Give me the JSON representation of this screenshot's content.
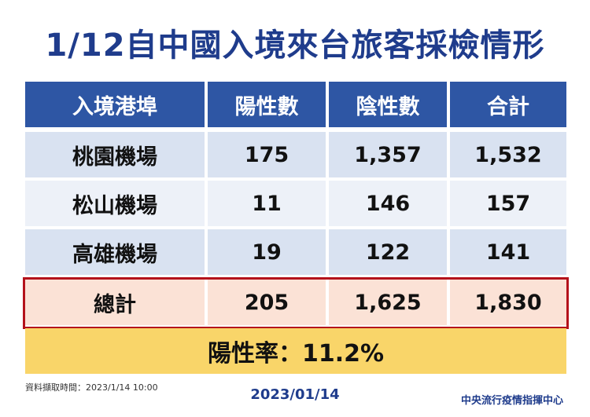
{
  "title": "1/12自中國入境來台旅客採檢情形",
  "table": {
    "headers": [
      "入境港埠",
      "陽性數",
      "陰性數",
      "合計"
    ],
    "rows": [
      [
        "桃園機場",
        "175",
        "1,357",
        "1,532"
      ],
      [
        "松山機場",
        "11",
        "146",
        "157"
      ],
      [
        "高雄機場",
        "19",
        "122",
        "141"
      ]
    ],
    "total": [
      "總計",
      "205",
      "1,625",
      "1,830"
    ]
  },
  "positive_rate": "陽性率：11.2%",
  "footnote": "資料擷取時間：2023/1/14 10:00",
  "date": "2023/01/14",
  "organization": "中央流行疫情指揮中心",
  "colors": {
    "title": "#1f3c8c",
    "header_bg": "#2e56a4",
    "row_blue": "#d9e2f1",
    "row_light": "#edf1f8",
    "total_bg": "#fbe2d6",
    "total_border": "#b4121b",
    "rate_bg": "#f9d569"
  }
}
